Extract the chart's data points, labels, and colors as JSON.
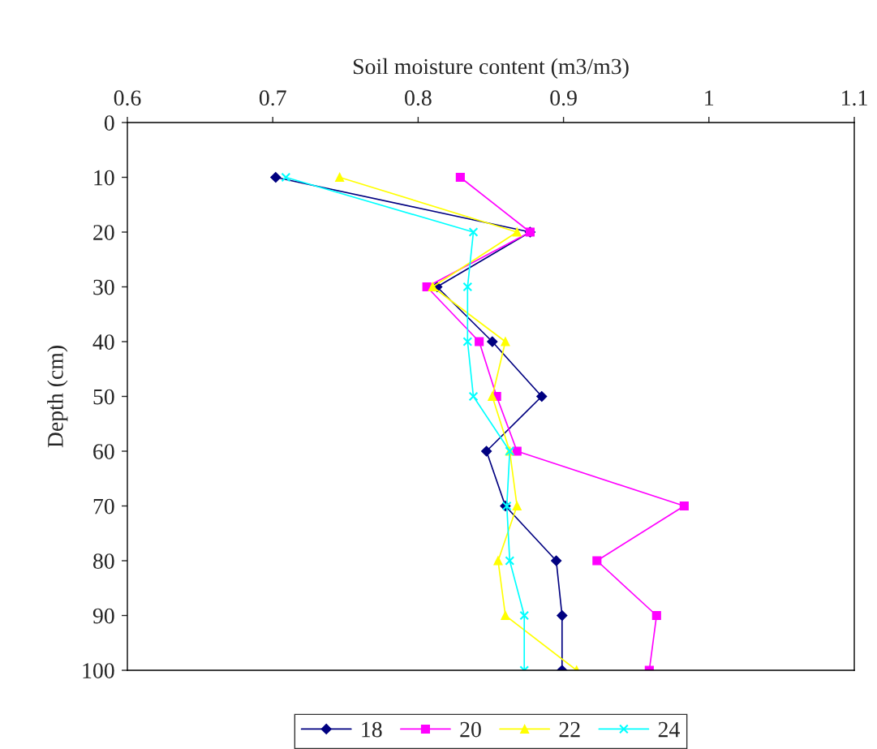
{
  "chart_data": {
    "type": "line",
    "xlabel": "Soil moisture content (m3/m3)",
    "ylabel": "Depth (cm)",
    "xlim": [
      0.6,
      1.1
    ],
    "xticks": [
      0.6,
      0.7,
      0.8,
      0.9,
      1,
      1.1
    ],
    "ylim": [
      100,
      0
    ],
    "yticks": [
      0,
      10,
      20,
      30,
      40,
      50,
      60,
      70,
      80,
      90,
      100
    ],
    "grid": false,
    "legend": "bottom",
    "line_style": "solid",
    "series": [
      {
        "name": "18",
        "color": "#000080",
        "marker": "diamond",
        "x": [
          0.702,
          0.877,
          0.813,
          0.851,
          0.885,
          0.847,
          0.86,
          0.895,
          0.899,
          0.899
        ],
        "values": [
          10,
          20,
          30,
          40,
          50,
          60,
          70,
          80,
          90,
          100
        ]
      },
      {
        "name": "20",
        "color": "#ff00ff",
        "marker": "square",
        "x": [
          0.829,
          0.877,
          0.806,
          0.842,
          0.854,
          0.868,
          0.983,
          0.923,
          0.964,
          0.959
        ],
        "values": [
          10,
          20,
          30,
          40,
          50,
          60,
          70,
          80,
          90,
          100
        ]
      },
      {
        "name": "22",
        "color": "#ffff00",
        "marker": "triangle",
        "x": [
          0.746,
          0.868,
          0.81,
          0.86,
          0.851,
          0.863,
          0.868,
          0.855,
          0.86,
          0.909
        ],
        "values": [
          10,
          20,
          30,
          40,
          50,
          60,
          70,
          80,
          90,
          100
        ]
      },
      {
        "name": "24",
        "color": "#00ffff",
        "marker": "cross",
        "x": [
          0.709,
          0.838,
          0.834,
          0.834,
          0.838,
          0.863,
          0.861,
          0.863,
          0.873,
          0.873
        ],
        "values": [
          10,
          20,
          30,
          40,
          50,
          60,
          70,
          80,
          90,
          100
        ]
      }
    ]
  }
}
